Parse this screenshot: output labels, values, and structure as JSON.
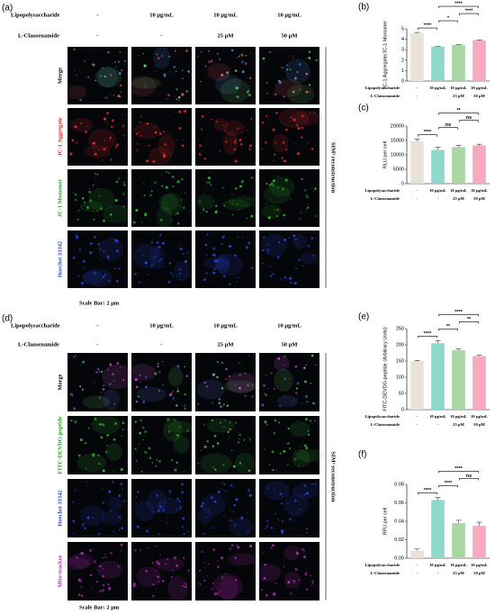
{
  "figure": {
    "panels": [
      {
        "label": "(a)",
        "row_headers": [
          "Lipopolysaccharide",
          "L-Clausenamide"
        ],
        "columns": [
          [
            "-",
            "10 μg/mL",
            "10 μg/mL",
            "10 μg/mL"
          ],
          [
            "-",
            "-",
            "25 μM",
            "50 μM"
          ]
        ],
        "rows": [
          "Merge",
          "JC-1 Aggregate",
          "JC-1 Monomer",
          "Hoechst 33342"
        ],
        "side_label": "SIM² reconstruction",
        "scale_bar": "Scale Bar: 2 μm"
      },
      {
        "label": "(d)",
        "row_headers": [
          "Lipopolysaccharide",
          "L-Clausenamide"
        ],
        "columns": [
          [
            "-",
            "10 μg/mL",
            "10 μg/mL",
            "10 μg/mL"
          ],
          [
            "-",
            "-",
            "25 μM",
            "50 μM"
          ]
        ],
        "rows": [
          "Merge",
          "FITC-DEVDG-peptide",
          "Hoechst 33342",
          "Mito-tracker"
        ],
        "side_label": "SIM² reconstruction",
        "scale_bar": "Scale Bar: 2 μm"
      }
    ]
  },
  "chart_data": [
    {
      "type": "bar",
      "label": "(b)",
      "ylabel": "JC-1 Aggregate/JC-1 Monomer",
      "row_labels": [
        "Lipopolysaccharide",
        "L-Clausenamide"
      ],
      "categories": [
        "-",
        "10 μg/mL",
        "10 μg/mL",
        "10 μg/mL"
      ],
      "categories2": [
        "-",
        "-",
        "25 μM",
        "50 μM"
      ],
      "values": [
        4.6,
        3.3,
        3.45,
        3.9
      ],
      "errors": [
        0.05,
        0.04,
        0.05,
        0.04
      ],
      "colors": [
        "#e8e2d8",
        "#8fd9cc",
        "#a9d6a4",
        "#f7a9c0"
      ],
      "ylim": [
        0,
        5
      ],
      "yticks": [
        0,
        1,
        2,
        3,
        4,
        5
      ],
      "significance": [
        {
          "from": 0,
          "to": 1,
          "label": "****"
        },
        {
          "from": 1,
          "to": 2,
          "label": "*"
        },
        {
          "from": 2,
          "to": 3,
          "label": "****"
        },
        {
          "from": 1,
          "to": 3,
          "label": "****"
        }
      ]
    },
    {
      "type": "bar",
      "label": "(c)",
      "ylabel": "RLU per cell",
      "row_labels": [
        "Lipopolysaccharide",
        "L-Clausenamide"
      ],
      "categories": [
        "-",
        "10 μg/mL",
        "10 μg/mL",
        "10 μg/mL"
      ],
      "categories2": [
        "-",
        "-",
        "25 μM",
        "50 μM"
      ],
      "values": [
        14700,
        11700,
        12700,
        13300
      ],
      "errors": [
        700,
        1000,
        600,
        400
      ],
      "colors": [
        "#e8e2d8",
        "#8fd9cc",
        "#a9d6a4",
        "#f7a9c0"
      ],
      "ylim": [
        0,
        20000
      ],
      "yticks": [
        0,
        5000,
        10000,
        15000,
        20000
      ],
      "significance": [
        {
          "from": 0,
          "to": 1,
          "label": "****"
        },
        {
          "from": 1,
          "to": 2,
          "label": "ns"
        },
        {
          "from": 2,
          "to": 3,
          "label": "ns"
        },
        {
          "from": 1,
          "to": 3,
          "label": "**"
        }
      ]
    },
    {
      "type": "bar",
      "label": "(e)",
      "ylabel": "FITC-DEVDG-peptide (Arbitrary Units)",
      "row_labels": [
        "Lipopolysaccharide",
        "L-Clausenamide"
      ],
      "categories": [
        "-",
        "10 μg/mL",
        "10 μg/mL",
        "10 μg/mL"
      ],
      "categories2": [
        "-",
        "-",
        "25 μM",
        "50 μM"
      ],
      "values": [
        150,
        205,
        183,
        165
      ],
      "errors": [
        2,
        8,
        4,
        3
      ],
      "colors": [
        "#e8e2d8",
        "#8fd9cc",
        "#a9d6a4",
        "#f7a9c0"
      ],
      "ylim": [
        0,
        250
      ],
      "yticks": [
        0,
        50,
        100,
        150,
        200,
        250
      ],
      "significance": [
        {
          "from": 0,
          "to": 1,
          "label": "****"
        },
        {
          "from": 1,
          "to": 2,
          "label": "**"
        },
        {
          "from": 2,
          "to": 3,
          "label": "**"
        },
        {
          "from": 1,
          "to": 3,
          "label": "****"
        }
      ]
    },
    {
      "type": "bar",
      "label": "(f)",
      "ylabel": "RFU per cell",
      "row_labels": [
        "Lipopolysaccharide",
        "L-Clausenamide"
      ],
      "categories": [
        "-",
        "10 μg/mL",
        "10 μg/mL",
        "10 μg/mL"
      ],
      "categories2": [
        "-",
        "-",
        "25 μM",
        "50 μM"
      ],
      "values": [
        0.008,
        0.063,
        0.038,
        0.035
      ],
      "errors": [
        0.002,
        0.003,
        0.003,
        0.004
      ],
      "colors": [
        "#e8e2d8",
        "#8fd9cc",
        "#a9d6a4",
        "#f7a9c0"
      ],
      "ylim": [
        0,
        0.08
      ],
      "yticks": [
        {
          "value": 0,
          "label": "0.00"
        },
        {
          "value": 0.02,
          "label": "0.02"
        },
        {
          "value": 0.04,
          "label": "0.04"
        },
        {
          "value": 0.06,
          "label": "0.06"
        },
        {
          "value": 0.08,
          "label": "0.08"
        }
      ],
      "significance": [
        {
          "from": 0,
          "to": 1,
          "label": "****"
        },
        {
          "from": 1,
          "to": 2,
          "label": "****"
        },
        {
          "from": 2,
          "to": 3,
          "label": "ns"
        },
        {
          "from": 1,
          "to": 3,
          "label": "****"
        }
      ]
    }
  ]
}
